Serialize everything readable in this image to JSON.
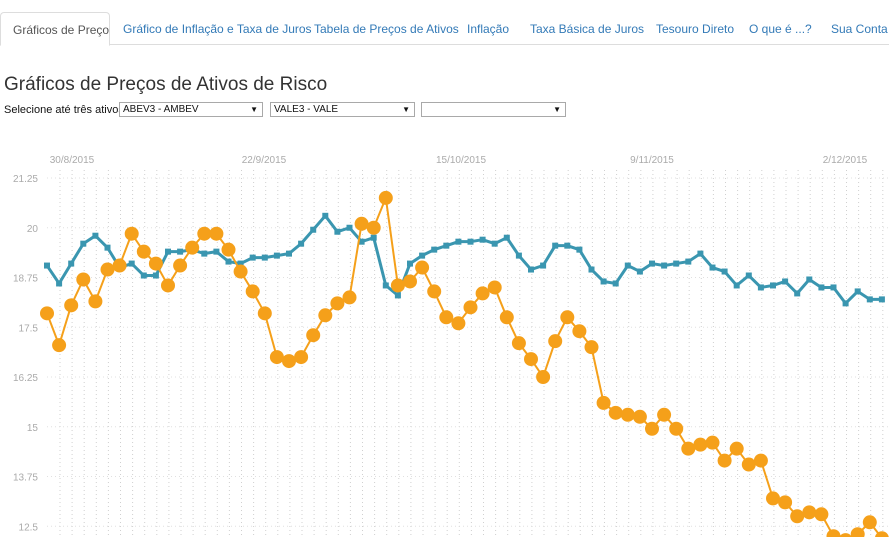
{
  "tabs": [
    {
      "label": "Gráficos de Preço",
      "active": true
    },
    {
      "label": "Gráfico de Inflação e Taxa de Juros"
    },
    {
      "label": "Tabela de Preços de Ativos"
    },
    {
      "label": "Inflação"
    },
    {
      "label": "Taxa Básica de Juros"
    },
    {
      "label": "Tesouro Direto"
    },
    {
      "label": "O que é ...?"
    },
    {
      "label": "Sua Conta"
    }
  ],
  "page_title": "Gráficos de Preços de Ativos de Risco",
  "selector": {
    "label": "Selecione até três ativos:",
    "selected": [
      "ABEV3 - AMBEV",
      "VALE3 - VALE",
      ""
    ]
  },
  "chart_data": {
    "type": "line",
    "x_ticks": [
      "30/8/2015",
      "22/9/2015",
      "15/10/2015",
      "9/11/2015",
      "2/12/2015"
    ],
    "y_ticks": [
      "21.25",
      "20",
      "18.75",
      "17.5",
      "16.25",
      "15",
      "13.75",
      "12.5"
    ],
    "ylim": [
      12.3,
      21.4
    ],
    "series": [
      {
        "color": "#3a96b0",
        "marker": "square",
        "values": [
          19.05,
          18.6,
          19.1,
          19.6,
          19.8,
          19.5,
          19.0,
          19.1,
          18.8,
          18.8,
          19.4,
          19.4,
          19.45,
          19.35,
          19.4,
          19.15,
          19.1,
          19.25,
          19.25,
          19.3,
          19.35,
          19.6,
          19.95,
          20.3,
          19.9,
          20.0,
          19.65,
          19.75,
          18.55,
          18.3,
          19.1,
          19.3,
          19.45,
          19.55,
          19.65,
          19.65,
          19.7,
          19.6,
          19.75,
          19.3,
          18.95,
          19.05,
          19.55,
          19.55,
          19.45,
          18.95,
          18.65,
          18.6,
          19.05,
          18.9,
          19.1,
          19.05,
          19.1,
          19.15,
          19.35,
          19.0,
          18.9,
          18.55,
          18.8,
          18.5,
          18.55,
          18.65,
          18.35,
          18.7,
          18.5,
          18.5,
          18.1,
          18.4,
          18.2,
          18.2
        ]
      },
      {
        "color": "#f5a01a",
        "marker": "circle",
        "values": [
          17.85,
          17.05,
          18.05,
          18.7,
          18.15,
          18.95,
          19.05,
          19.85,
          19.4,
          19.1,
          18.55,
          19.05,
          19.5,
          19.85,
          19.85,
          19.45,
          18.9,
          18.4,
          17.85,
          16.75,
          16.65,
          16.75,
          17.3,
          17.8,
          18.1,
          18.25,
          20.1,
          20.0,
          20.75,
          18.55,
          18.65,
          19.0,
          18.4,
          17.75,
          17.6,
          18.0,
          18.35,
          18.5,
          17.75,
          17.1,
          16.7,
          16.25,
          17.15,
          17.75,
          17.4,
          17.0,
          15.6,
          15.35,
          15.3,
          15.25,
          14.95,
          15.3,
          14.95,
          14.45,
          14.55,
          14.6,
          14.15,
          14.45,
          14.05,
          14.15,
          13.2,
          13.1,
          12.75,
          12.85,
          12.8,
          12.25,
          12.15,
          12.3,
          12.6,
          12.2
        ]
      }
    ]
  }
}
